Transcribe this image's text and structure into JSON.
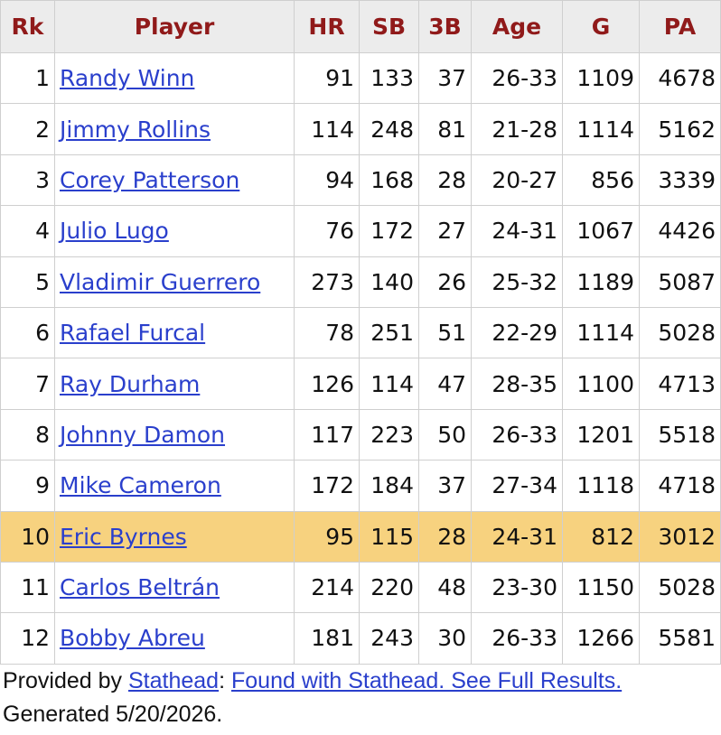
{
  "table": {
    "header": [
      "Rk",
      "Player",
      "HR",
      "SB",
      "3B",
      "Age",
      "G",
      "PA"
    ],
    "rows": [
      [
        "1",
        "Randy Winn",
        "91",
        "133",
        "37",
        "26-33",
        "1109",
        "4678"
      ],
      [
        "2",
        "Jimmy Rollins",
        "114",
        "248",
        "81",
        "21-28",
        "1114",
        "5162"
      ],
      [
        "3",
        "Corey Patterson",
        "94",
        "168",
        "28",
        "20-27",
        "856",
        "3339"
      ],
      [
        "4",
        "Julio Lugo",
        "76",
        "172",
        "27",
        "24-31",
        "1067",
        "4426"
      ],
      [
        "5",
        "Vladimir Guerrero",
        "273",
        "140",
        "26",
        "25-32",
        "1189",
        "5087"
      ],
      [
        "6",
        "Rafael Furcal",
        "78",
        "251",
        "51",
        "22-29",
        "1114",
        "5028"
      ],
      [
        "7",
        "Ray Durham",
        "126",
        "114",
        "47",
        "28-35",
        "1100",
        "4713"
      ],
      [
        "8",
        "Johnny Damon",
        "117",
        "223",
        "50",
        "26-33",
        "1201",
        "5518"
      ],
      [
        "9",
        "Mike Cameron",
        "172",
        "184",
        "37",
        "27-34",
        "1118",
        "4718"
      ],
      [
        "10",
        "Eric Byrnes",
        "95",
        "115",
        "28",
        "24-31",
        "812",
        "3012"
      ],
      [
        "11",
        "Carlos Beltrán",
        "214",
        "220",
        "48",
        "23-30",
        "1150",
        "5028"
      ],
      [
        "12",
        "Bobby Abreu",
        "181",
        "243",
        "30",
        "26-33",
        "1266",
        "5581"
      ]
    ]
  },
  "footer": {
    "prefix": "Provided by",
    "source": "Stathead",
    "separator": ":",
    "link": "Found with Stathead. See Full Results.",
    "generated": "Generated 5/20/2026."
  }
}
